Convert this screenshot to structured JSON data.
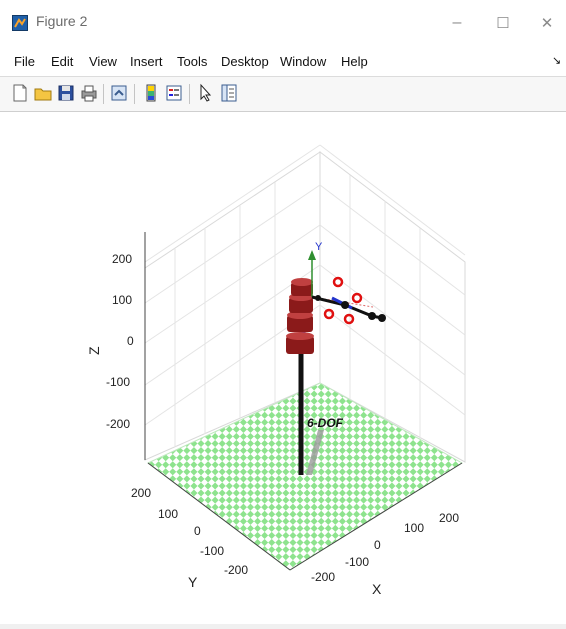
{
  "window": {
    "title": "Figure 2",
    "minimize_glyph": "–",
    "maximize_glyph": "☐",
    "close_glyph": "✕"
  },
  "menu": {
    "items": [
      "File",
      "Edit",
      "View",
      "Insert",
      "Tools",
      "Desktop",
      "Window",
      "Help"
    ],
    "overflow_glyph": "↘"
  },
  "toolbar": {
    "buttons": [
      "new-figure-icon",
      "open-file-icon",
      "save-icon",
      "print-icon",
      "link-plot-icon",
      "insert-colorbar-icon",
      "insert-legend-icon",
      "edit-plot-icon",
      "property-inspector-icon"
    ]
  },
  "plot": {
    "axes": {
      "x_label": "X",
      "y_label": "Y",
      "z_label": "Z"
    },
    "z_ticks": [
      "200",
      "100",
      "0",
      "-100",
      "-200"
    ],
    "x_ticks": [
      "-200",
      "-100",
      "0",
      "100",
      "200"
    ],
    "y_ticks": [
      "200",
      "100",
      "0",
      "-100",
      "-200"
    ],
    "annotation": "6-DOF",
    "frame_axis_label": "Y",
    "colors": {
      "floor_light": "#ffffff",
      "floor_check": "#8ee38e",
      "link": "#8b1a1a",
      "joint_axis": "#2233cc",
      "target_marker": "#e01010",
      "frame_y": "#2f8f2f"
    }
  }
}
